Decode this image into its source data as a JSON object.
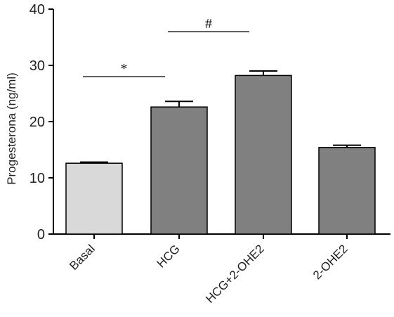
{
  "chart_data": {
    "type": "bar",
    "title": "",
    "xlabel": "",
    "ylabel": "Progesterona (ng/ml)",
    "ylim": [
      0,
      40
    ],
    "yticks": [
      "0",
      "10",
      "20",
      "30",
      "40"
    ],
    "ytick_values": [
      0,
      10,
      20,
      30,
      40
    ],
    "categories": [
      "Basal",
      "HCG",
      "HCG+2-OHE2",
      "2-OHE2"
    ],
    "values": [
      12.6,
      22.6,
      28.2,
      15.4
    ],
    "errors": [
      0.2,
      1.0,
      0.8,
      0.4
    ],
    "bar_colors": [
      "#d9d9d9",
      "#808080",
      "#808080",
      "#808080"
    ],
    "annotations": [
      {
        "label": "*",
        "from": "Basal",
        "to": "HCG",
        "y": 28
      },
      {
        "label": "#",
        "from": "HCG",
        "to": "HCG+2-OHE2",
        "y": 36
      }
    ],
    "grid": false,
    "legend": "none"
  }
}
